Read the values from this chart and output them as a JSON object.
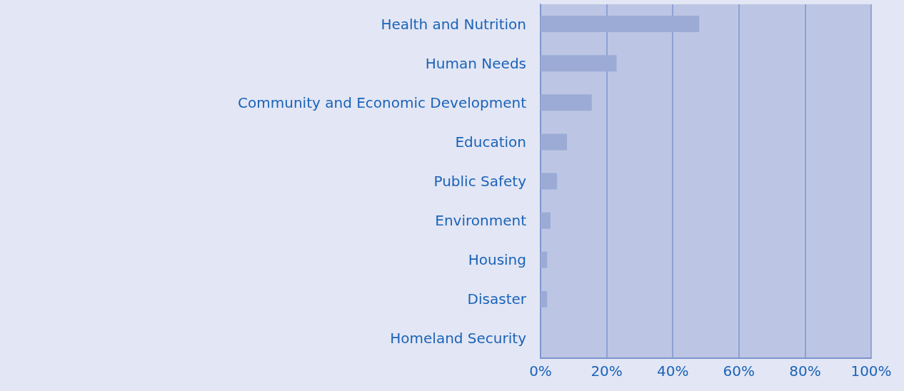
{
  "chart_data": {
    "type": "bar",
    "orientation": "horizontal",
    "categories": [
      "Health and Nutrition",
      "Human Needs",
      "Community and Economic Development",
      "Education",
      "Public Safety",
      "Environment",
      "Housing",
      "Disaster",
      "Homeland Security"
    ],
    "values": [
      48,
      23,
      15.5,
      8,
      5,
      3,
      2,
      2,
      0
    ],
    "color": "#9babd6",
    "xlim": [
      0,
      100
    ],
    "xticks": [
      {
        "value": 0,
        "label": "0%"
      },
      {
        "value": 20,
        "label": "20%"
      },
      {
        "value": 40,
        "label": "40%"
      },
      {
        "value": 60,
        "label": "60%"
      },
      {
        "value": 80,
        "label": "80%"
      },
      {
        "value": 100,
        "label": "100%"
      }
    ],
    "grid": "x"
  }
}
